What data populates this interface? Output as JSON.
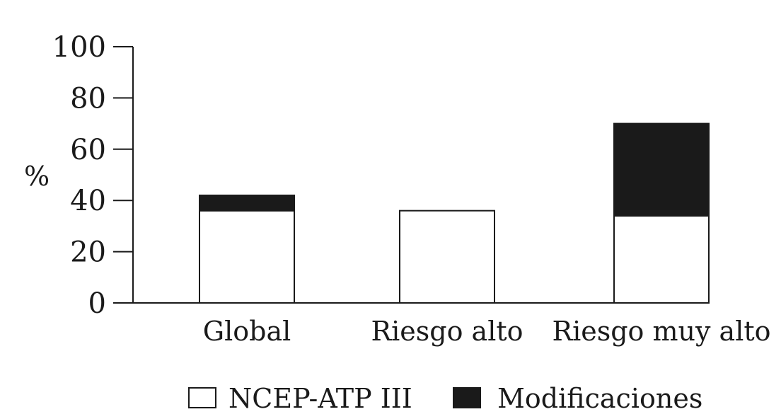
{
  "chart_data": {
    "type": "bar",
    "stacked": true,
    "categories": [
      "Global",
      "Riesgo alto",
      "Riesgo muy alto"
    ],
    "series": [
      {
        "name": "NCEP-ATP III",
        "values": [
          36,
          36,
          34
        ],
        "color": "#ffffff"
      },
      {
        "name": "Modificaciones",
        "values": [
          6,
          0,
          36
        ],
        "color": "#1a1a1a"
      }
    ],
    "ylabel": "%",
    "ylim": [
      0,
      100
    ],
    "yticks": [
      0,
      20,
      40,
      60,
      80,
      100
    ],
    "grid": false,
    "legend_position": "bottom"
  }
}
